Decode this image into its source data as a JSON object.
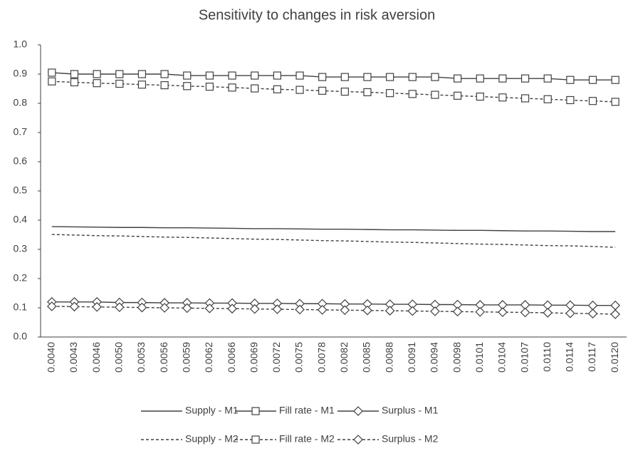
{
  "chart_data": {
    "type": "line",
    "title": "Sensitivity to changes in risk aversion",
    "categories": [
      "0.0040",
      "0.0043",
      "0.0046",
      "0.0050",
      "0.0053",
      "0.0056",
      "0.0059",
      "0.0062",
      "0.0066",
      "0.0069",
      "0.0072",
      "0.0075",
      "0.0078",
      "0.0082",
      "0.0085",
      "0.0088",
      "0.0091",
      "0.0094",
      "0.0098",
      "0.0101",
      "0.0104",
      "0.0107",
      "0.0110",
      "0.0114",
      "0.0117",
      "0.0120"
    ],
    "ylim": [
      0,
      1
    ],
    "yticks": [
      {
        "value": 0,
        "label": "0.0"
      },
      0.1,
      0.2,
      0.3,
      0.4,
      0.5,
      0.6,
      0.7,
      0.8,
      0.9,
      {
        "value": 1,
        "label": "1.0"
      }
    ],
    "series": [
      {
        "name": "Supply - M1",
        "color": "#404040",
        "dash": false,
        "marker": null,
        "values": [
          0.378,
          0.377,
          0.376,
          0.375,
          0.375,
          0.374,
          0.374,
          0.373,
          0.372,
          0.371,
          0.371,
          0.37,
          0.369,
          0.369,
          0.368,
          0.367,
          0.367,
          0.366,
          0.365,
          0.365,
          0.364,
          0.363,
          0.363,
          0.362,
          0.361,
          0.361
        ]
      },
      {
        "name": "Fill rate - M1",
        "color": "#404040",
        "dash": false,
        "marker": "square",
        "values": [
          0.905,
          0.9,
          0.9,
          0.9,
          0.9,
          0.9,
          0.895,
          0.895,
          0.895,
          0.895,
          0.895,
          0.895,
          0.89,
          0.89,
          0.89,
          0.89,
          0.89,
          0.89,
          0.885,
          0.885,
          0.885,
          0.885,
          0.885,
          0.88,
          0.88,
          0.88
        ]
      },
      {
        "name": "Surplus - M1",
        "color": "#404040",
        "dash": false,
        "marker": "diamond",
        "values": [
          0.12,
          0.12,
          0.12,
          0.118,
          0.118,
          0.117,
          0.117,
          0.116,
          0.116,
          0.115,
          0.115,
          0.114,
          0.114,
          0.113,
          0.113,
          0.112,
          0.112,
          0.111,
          0.111,
          0.11,
          0.11,
          0.11,
          0.109,
          0.109,
          0.108,
          0.108
        ]
      },
      {
        "name": "Supply - M2",
        "color": "#404040",
        "dash": true,
        "marker": null,
        "values": [
          0.351,
          0.349,
          0.347,
          0.346,
          0.344,
          0.342,
          0.341,
          0.339,
          0.337,
          0.335,
          0.334,
          0.332,
          0.33,
          0.329,
          0.327,
          0.325,
          0.324,
          0.322,
          0.32,
          0.318,
          0.317,
          0.315,
          0.313,
          0.312,
          0.31,
          0.307
        ]
      },
      {
        "name": "Fill rate - M2",
        "color": "#404040",
        "dash": true,
        "marker": "square",
        "values": [
          0.875,
          0.872,
          0.869,
          0.867,
          0.864,
          0.862,
          0.859,
          0.857,
          0.854,
          0.851,
          0.848,
          0.846,
          0.843,
          0.84,
          0.838,
          0.835,
          0.832,
          0.829,
          0.826,
          0.823,
          0.82,
          0.817,
          0.814,
          0.811,
          0.808,
          0.805
        ]
      },
      {
        "name": "Surplus - M2",
        "color": "#404040",
        "dash": true,
        "marker": "diamond",
        "values": [
          0.105,
          0.104,
          0.103,
          0.102,
          0.101,
          0.1,
          0.099,
          0.098,
          0.097,
          0.096,
          0.095,
          0.094,
          0.093,
          0.092,
          0.091,
          0.09,
          0.089,
          0.088,
          0.087,
          0.086,
          0.085,
          0.084,
          0.083,
          0.081,
          0.08,
          0.078
        ]
      }
    ]
  }
}
